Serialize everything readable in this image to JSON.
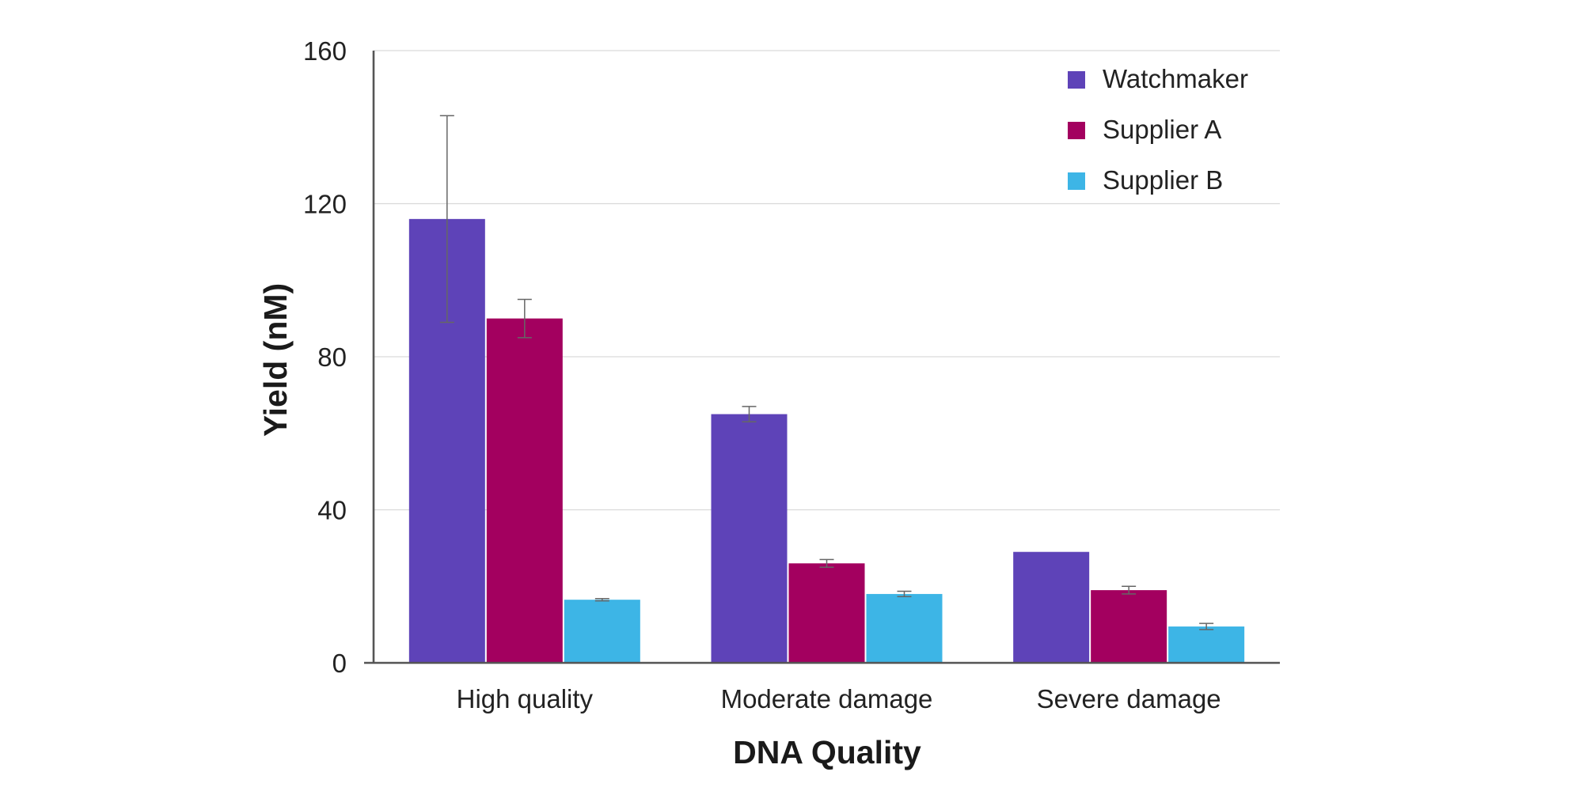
{
  "chart_data": {
    "type": "bar",
    "title": "",
    "xlabel": "DNA Quality",
    "ylabel": "Yield (nM)",
    "ylim": [
      0,
      160
    ],
    "yticks": [
      0,
      40,
      80,
      120,
      160
    ],
    "grid": true,
    "legend_position": "top-right",
    "categories": [
      "High quality",
      "Moderate damage",
      "Severe damage"
    ],
    "series": [
      {
        "name": "Watchmaker",
        "color": "#5e43b8",
        "values": [
          116,
          65,
          29
        ],
        "errors": [
          27,
          2,
          0
        ]
      },
      {
        "name": "Supplier A",
        "color": "#a3005f",
        "values": [
          90,
          26,
          19
        ],
        "errors": [
          5,
          1,
          1
        ]
      },
      {
        "name": "Supplier B",
        "color": "#3db5e6",
        "values": [
          16.5,
          18,
          9.5
        ],
        "errors": [
          0.3,
          0.7,
          0.8
        ]
      }
    ]
  }
}
